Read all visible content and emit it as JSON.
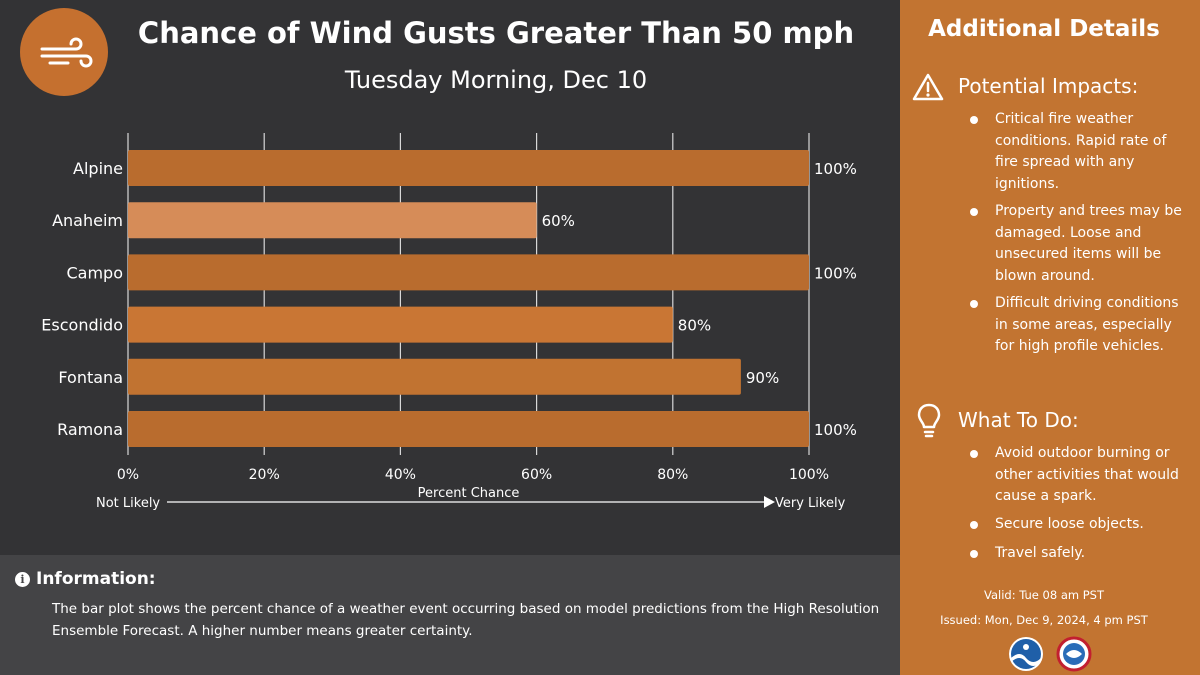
{
  "header": {
    "title": "Chance of Wind Gusts Greater Than 50 mph",
    "subtitle": "Tuesday Morning, Dec 10",
    "icon": "wind-icon"
  },
  "chart_data": {
    "type": "bar",
    "orientation": "horizontal",
    "categories": [
      "Alpine",
      "Anaheim",
      "Campo",
      "Escondido",
      "Fontana",
      "Ramona"
    ],
    "values": [
      100,
      60,
      100,
      80,
      90,
      100
    ],
    "value_labels": [
      "100%",
      "60%",
      "100%",
      "80%",
      "90%",
      "100%"
    ],
    "bar_colors": [
      "#b96c2e",
      "#d68c58",
      "#b96c2e",
      "#c97634",
      "#c17331",
      "#b96c2e"
    ],
    "xlim": [
      0,
      100
    ],
    "x_ticks": [
      "0%",
      "20%",
      "40%",
      "60%",
      "80%",
      "100%"
    ],
    "xlabel": "Percent Chance",
    "scale_left": "Not Likely",
    "scale_right": "Very Likely",
    "grid": "vertical"
  },
  "info": {
    "title": "Information:",
    "text": "The bar plot shows the percent chance of a weather event occurring based on model predictions from the High Resolution Ensemble Forecast. A higher number means greater certainty."
  },
  "sidebar": {
    "title": "Additional Details",
    "impacts": {
      "title": "Potential Impacts:",
      "icon": "warning-icon",
      "items": [
        "Critical fire weather conditions. Rapid rate of fire spread with any ignitions.",
        "Property and trees may be damaged. Loose and unsecured items will be blown around.",
        "Difficult driving conditions in some areas, especially for high profile vehicles."
      ]
    },
    "todo": {
      "title": "What To Do:",
      "icon": "lightbulb-icon",
      "items": [
        "Avoid outdoor burning or other activities that would cause a spark.",
        "Secure loose objects.",
        "Travel safely."
      ]
    },
    "valid": "Valid: Tue 08 am PST",
    "issued": "Issued: Mon, Dec 9, 2024, 4 pm PST",
    "logos": [
      "noaa-logo",
      "nws-logo"
    ]
  },
  "colors": {
    "background": "#333335",
    "accent": "#c27431",
    "info_panel": "#444446"
  }
}
